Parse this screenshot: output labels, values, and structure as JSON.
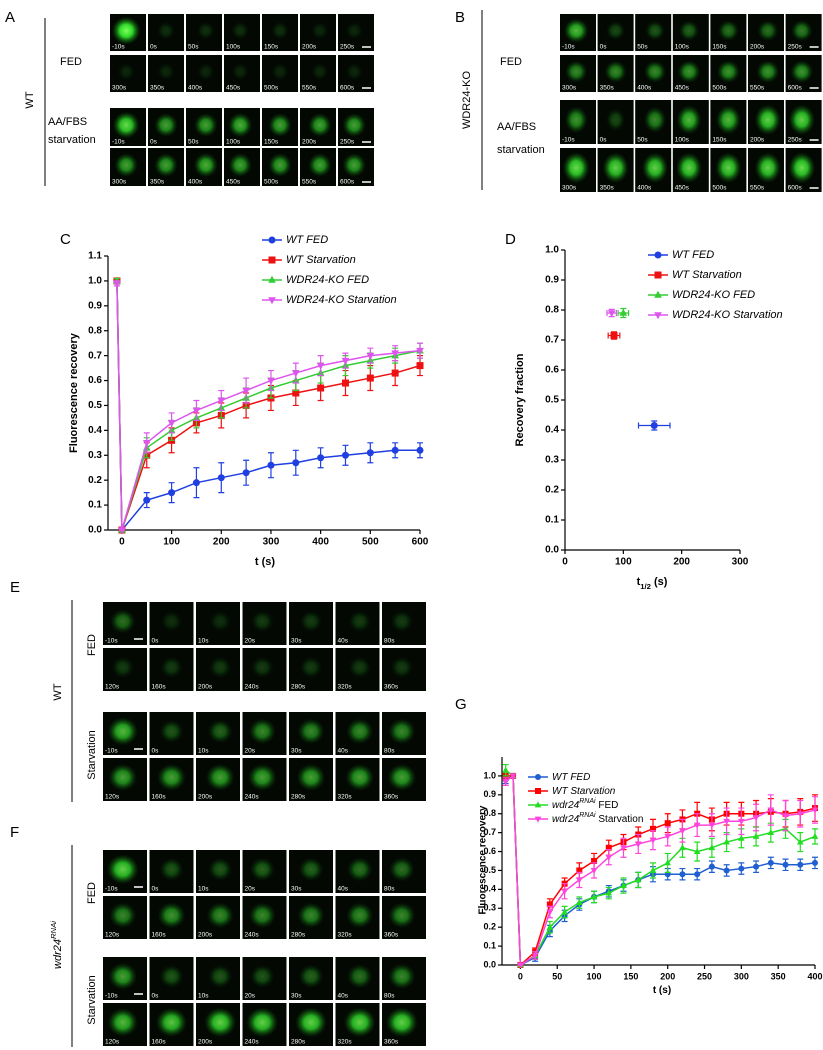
{
  "panels": {
    "A": {
      "label": "A",
      "genotype": "WT",
      "conditions": [
        {
          "label": [
            "FED"
          ],
          "rows": [
            [
              "-10s",
              "0s",
              "50s",
              "100s",
              "150s",
              "200s",
              "250s"
            ],
            [
              "300s",
              "350s",
              "400s",
              "450s",
              "500s",
              "550s",
              "600s"
            ]
          ]
        },
        {
          "label": [
            "AA/FBS",
            "starvation"
          ],
          "rows": [
            [
              "-10s",
              "0s",
              "50s",
              "100s",
              "150s",
              "200s",
              "250s"
            ],
            [
              "300s",
              "350s",
              "400s",
              "450s",
              "500s",
              "550s",
              "600s"
            ]
          ]
        }
      ]
    },
    "B": {
      "label": "B",
      "genotype": "WDR24-KO",
      "conditions": [
        {
          "label": [
            "FED"
          ],
          "rows": [
            [
              "-10s",
              "0s",
              "50s",
              "100s",
              "150s",
              "200s",
              "250s"
            ],
            [
              "300s",
              "350s",
              "400s",
              "450s",
              "500s",
              "550s",
              "600s"
            ]
          ]
        },
        {
          "label": [
            "AA/FBS",
            "starvation"
          ],
          "rows": [
            [
              "-10s",
              "0s",
              "50s",
              "100s",
              "150s",
              "200s",
              "250s"
            ],
            [
              "300s",
              "350s",
              "400s",
              "450s",
              "500s",
              "550s",
              "600s"
            ]
          ]
        }
      ]
    },
    "E": {
      "label": "E",
      "genotype": "WT",
      "conditions": [
        {
          "label": [
            "FED"
          ],
          "rows": [
            [
              "-10s",
              "0s",
              "10s",
              "20s",
              "30s",
              "40s",
              "80s"
            ],
            [
              "120s",
              "160s",
              "200s",
              "240s",
              "280s",
              "320s",
              "360s"
            ]
          ]
        },
        {
          "label": [
            "Starvation"
          ],
          "rows": [
            [
              "-10s",
              "0s",
              "10s",
              "20s",
              "30s",
              "40s",
              "80s"
            ],
            [
              "120s",
              "160s",
              "200s",
              "240s",
              "280s",
              "320s",
              "360s"
            ]
          ]
        }
      ]
    },
    "F": {
      "label": "F",
      "genotype": [
        "wdr24",
        "RNAi"
      ],
      "conditions": [
        {
          "label": [
            "FED"
          ],
          "rows": [
            [
              "-10s",
              "0s",
              "10s",
              "20s",
              "30s",
              "40s",
              "80s"
            ],
            [
              "120s",
              "160s",
              "200s",
              "240s",
              "280s",
              "320s",
              "360s"
            ]
          ]
        },
        {
          "label": [
            "Starvation"
          ],
          "rows": [
            [
              "-10s",
              "0s",
              "10s",
              "20s",
              "30s",
              "40s",
              "80s"
            ],
            [
              "120s",
              "160s",
              "200s",
              "240s",
              "280s",
              "320s",
              "360s"
            ]
          ]
        }
      ]
    }
  },
  "chart_data": [
    {
      "type": "line",
      "panel": "C",
      "x_label": [
        "t (s)"
      ],
      "y_label": "Fluorescence recovery",
      "x": [
        -10,
        0,
        50,
        100,
        150,
        200,
        250,
        300,
        350,
        400,
        450,
        500,
        550,
        600
      ],
      "xlim": [
        -28,
        600
      ],
      "xticks": [
        0,
        100,
        200,
        300,
        400,
        500,
        600
      ],
      "ylim": [
        0,
        1.1
      ],
      "yticks": [
        {
          "value": 0,
          "label": "0.0"
        },
        0.1,
        0.2,
        0.3,
        0.4,
        0.5,
        0.6,
        0.7,
        0.8,
        0.9,
        {
          "value": 1,
          "label": "1.0"
        },
        1.1
      ],
      "series": [
        {
          "name": [
            "WT FED"
          ],
          "color": "#1f3fe0",
          "marker": "circle",
          "values": [
            1.0,
            0,
            0.12,
            0.15,
            0.19,
            0.21,
            0.23,
            0.26,
            0.27,
            0.29,
            0.3,
            0.31,
            0.32,
            0.32
          ],
          "errors": [
            0.01,
            0,
            0.03,
            0.04,
            0.06,
            0.06,
            0.05,
            0.05,
            0.05,
            0.04,
            0.04,
            0.04,
            0.03,
            0.03
          ]
        },
        {
          "name": [
            "WT Starvation"
          ],
          "color": "#ee1111",
          "marker": "square",
          "values": [
            1.0,
            0,
            0.3,
            0.36,
            0.43,
            0.46,
            0.5,
            0.53,
            0.55,
            0.57,
            0.59,
            0.61,
            0.63,
            0.66
          ],
          "errors": [
            0.01,
            0,
            0.05,
            0.05,
            0.04,
            0.05,
            0.05,
            0.05,
            0.05,
            0.05,
            0.05,
            0.05,
            0.05,
            0.04
          ]
        },
        {
          "name": [
            "WDR24-KO FED"
          ],
          "color": "#33cc33",
          "marker": "triangle-up",
          "values": [
            1.0,
            0,
            0.33,
            0.4,
            0.45,
            0.49,
            0.53,
            0.57,
            0.6,
            0.63,
            0.66,
            0.68,
            0.7,
            0.72
          ],
          "errors": [
            0.01,
            0,
            0.04,
            0.04,
            0.04,
            0.04,
            0.04,
            0.04,
            0.04,
            0.04,
            0.04,
            0.03,
            0.03,
            0.03
          ]
        },
        {
          "name": [
            "WDR24-KO Starvation"
          ],
          "color": "#dd55ee",
          "marker": "triangle-down",
          "values": [
            0.99,
            0,
            0.35,
            0.43,
            0.48,
            0.52,
            0.56,
            0.6,
            0.63,
            0.66,
            0.68,
            0.7,
            0.71,
            0.72
          ],
          "errors": [
            0.01,
            0,
            0.04,
            0.04,
            0.04,
            0.04,
            0.05,
            0.04,
            0.04,
            0.04,
            0.03,
            0.03,
            0.03,
            0.03
          ]
        }
      ]
    },
    {
      "type": "scatter",
      "panel": "D",
      "x_label": [
        "t",
        "1/2",
        " (s)"
      ],
      "y_label": "Recovery fraction",
      "xlim": [
        0,
        300
      ],
      "xticks": [
        0,
        100,
        200,
        300
      ],
      "ylim": [
        0,
        1.0
      ],
      "yticks": [
        {
          "value": 0,
          "label": "0.0"
        },
        0.1,
        0.2,
        0.3,
        0.4,
        0.5,
        0.6,
        0.7,
        0.8,
        0.9,
        {
          "value": 1,
          "label": "1.0"
        }
      ],
      "series": [
        {
          "name": [
            "WT FED"
          ],
          "color": "#1f3fe0",
          "marker": "circle",
          "x": [
            153
          ],
          "values": [
            0.415
          ],
          "xerr": [
            27
          ],
          "yerr": [
            0.015
          ]
        },
        {
          "name": [
            "WT Starvation"
          ],
          "color": "#ee1111",
          "marker": "square",
          "x": [
            84
          ],
          "values": [
            0.715
          ],
          "xerr": [
            10
          ],
          "yerr": [
            0.012
          ]
        },
        {
          "name": [
            "WDR24-KO FED"
          ],
          "color": "#33cc33",
          "marker": "triangle-up",
          "x": [
            100
          ],
          "values": [
            0.79
          ],
          "xerr": [
            9
          ],
          "yerr": [
            0.015
          ]
        },
        {
          "name": [
            "WDR24-KO Starvation"
          ],
          "color": "#dd55ee",
          "marker": "triangle-down",
          "x": [
            80
          ],
          "values": [
            0.79
          ],
          "xerr": [
            8
          ],
          "yerr": [
            0.012
          ]
        }
      ]
    },
    {
      "type": "line",
      "panel": "G",
      "x_label": [
        "t (s)"
      ],
      "y_label": "Fluorescence recovery",
      "x": [
        -20,
        -10,
        0,
        20,
        40,
        60,
        80,
        100,
        120,
        140,
        160,
        180,
        200,
        220,
        240,
        260,
        280,
        300,
        320,
        340,
        360,
        380,
        400
      ],
      "xlim": [
        -25,
        400
      ],
      "xticks": [
        0,
        50,
        100,
        150,
        200,
        250,
        300,
        350,
        400
      ],
      "ylim": [
        0,
        1.1
      ],
      "yticks": [
        {
          "value": 0,
          "label": "0.0"
        },
        0.1,
        0.2,
        0.3,
        0.4,
        0.5,
        0.6,
        0.7,
        0.8,
        0.9,
        {
          "value": 1,
          "label": "1.0"
        }
      ],
      "series": [
        {
          "name": [
            "WT FED"
          ],
          "color": "#1f5fd0",
          "marker": "circle",
          "values": [
            0.98,
            1.0,
            0,
            0.04,
            0.18,
            0.26,
            0.32,
            0.36,
            0.39,
            0.42,
            0.45,
            0.48,
            0.48,
            0.48,
            0.48,
            0.52,
            0.5,
            0.51,
            0.52,
            0.54,
            0.53,
            0.53,
            0.54
          ],
          "errors": [
            0.02,
            0.01,
            0,
            0.02,
            0.03,
            0.03,
            0.03,
            0.03,
            0.03,
            0.03,
            0.04,
            0.04,
            0.03,
            0.03,
            0.03,
            0.03,
            0.03,
            0.03,
            0.03,
            0.03,
            0.03,
            0.03,
            0.03
          ]
        },
        {
          "name": [
            "WT Starvation"
          ],
          "color": "#ff0000",
          "marker": "square",
          "values": [
            1.0,
            1.0,
            0,
            0.07,
            0.32,
            0.43,
            0.5,
            0.55,
            0.62,
            0.65,
            0.69,
            0.72,
            0.75,
            0.77,
            0.8,
            0.77,
            0.8,
            0.8,
            0.8,
            0.81,
            0.8,
            0.81,
            0.83
          ],
          "errors": [
            0.02,
            0.01,
            0,
            0.02,
            0.03,
            0.03,
            0.04,
            0.04,
            0.04,
            0.04,
            0.04,
            0.05,
            0.05,
            0.05,
            0.06,
            0.06,
            0.06,
            0.06,
            0.07,
            0.07,
            0.07,
            0.07,
            0.07
          ]
        },
        {
          "name": [
            "wdr24",
            "RNAi",
            " FED"
          ],
          "color": "#22dd22",
          "marker": "triangle-up",
          "values": [
            1.03,
            1.0,
            0,
            0.05,
            0.2,
            0.28,
            0.33,
            0.36,
            0.38,
            0.42,
            0.45,
            0.5,
            0.54,
            0.62,
            0.6,
            0.62,
            0.65,
            0.67,
            0.68,
            0.7,
            0.72,
            0.65,
            0.68
          ],
          "errors": [
            0.03,
            0.01,
            0,
            0.02,
            0.03,
            0.03,
            0.03,
            0.03,
            0.03,
            0.04,
            0.04,
            0.04,
            0.05,
            0.05,
            0.05,
            0.05,
            0.05,
            0.05,
            0.05,
            0.05,
            0.05,
            0.05,
            0.04
          ]
        },
        {
          "name": [
            "wdr24",
            "RNAi",
            " Starvation"
          ],
          "color": "#ff44dd",
          "marker": "triangle-down",
          "values": [
            0.97,
            1.0,
            0,
            0.05,
            0.28,
            0.39,
            0.45,
            0.5,
            0.57,
            0.62,
            0.64,
            0.66,
            0.68,
            0.71,
            0.74,
            0.74,
            0.76,
            0.76,
            0.78,
            0.82,
            0.79,
            0.8,
            0.82
          ],
          "errors": [
            0.02,
            0.01,
            0,
            0.02,
            0.03,
            0.04,
            0.04,
            0.04,
            0.04,
            0.05,
            0.05,
            0.05,
            0.05,
            0.06,
            0.06,
            0.06,
            0.07,
            0.07,
            0.07,
            0.08,
            0.08,
            0.07,
            0.07
          ]
        }
      ]
    }
  ]
}
